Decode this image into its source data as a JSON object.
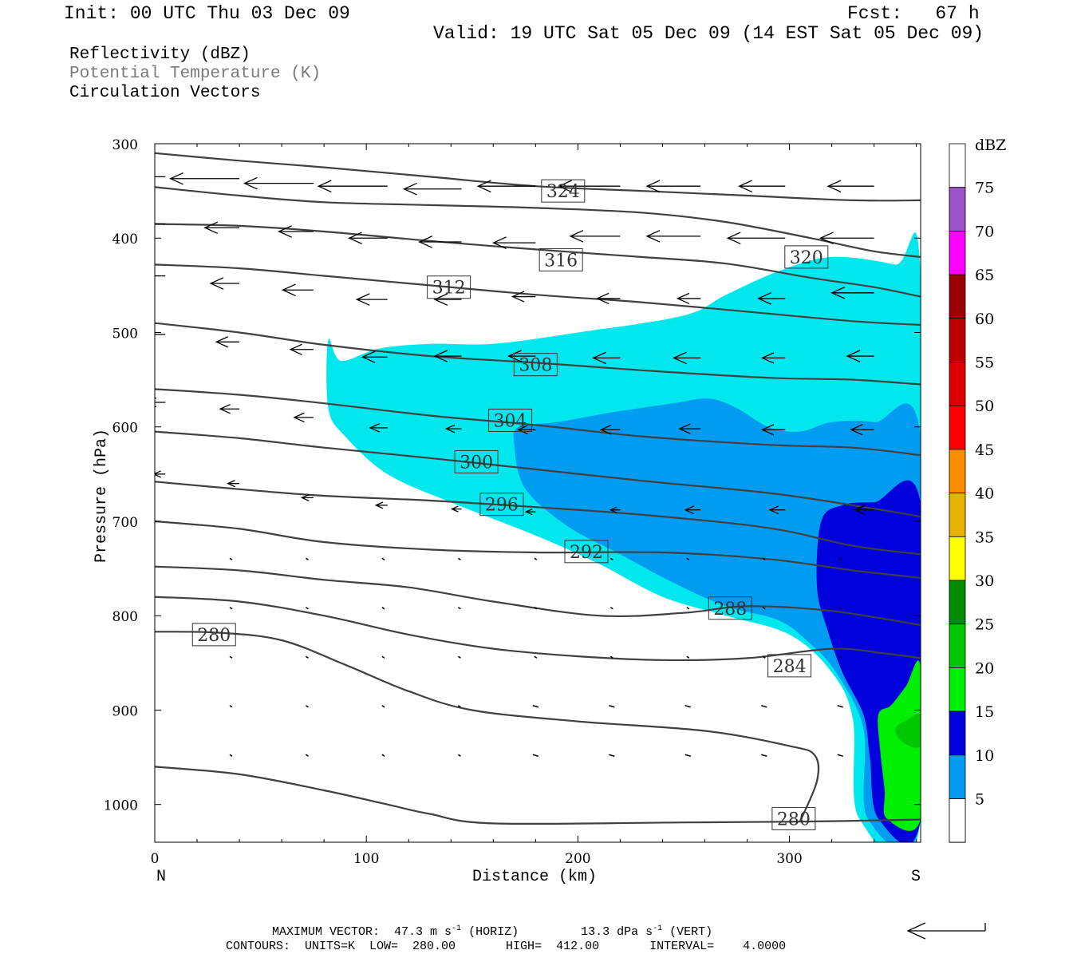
{
  "header": {
    "init": "Init: 00 UTC Thu 03 Dec 09",
    "fcst": "Fcst:   67 h",
    "valid": "Valid: 19 UTC Sat 05 Dec 09 (14 EST Sat 05 Dec 09)"
  },
  "fields": {
    "reflectivity": "Reflectivity (dBZ)",
    "theta": "Potential Temperature (K)",
    "vectors": "Circulation Vectors"
  },
  "footer": {
    "max_vector_prefix": "MAXIMUM VECTOR:  47.3 m s",
    "max_vector_horiz": "(HORIZ)",
    "vert_prefix": "13.3 dPa s",
    "vert_suffix": "(VERT)",
    "exponent": "-1",
    "contours": "CONTOURS:  UNITS=K  LOW=  280.00       HIGH=  412.00       INTERVAL=    4.0000"
  },
  "colors": {
    "c5": "#00e8ee",
    "c10": "#009cf2",
    "c15": "#0000dc",
    "c20": "#00ee00",
    "c25": "#00c800",
    "c30": "#008c00",
    "c35": "#ffff00",
    "c40": "#e6b400",
    "c45": "#ff8c00",
    "c50": "#ff0000",
    "c55": "#dc0000",
    "c60": "#be0000",
    "c65": "#9b0000",
    "c70": "#ff00ff",
    "c75": "#9a54c8",
    "contour": "#404040",
    "vector": "#000000"
  },
  "chart_data": {
    "type": "cross-section",
    "xlabel": "Distance (km)",
    "ylabel": "Pressure (hPa)",
    "xlim": [
      0,
      362
    ],
    "ylim": [
      300,
      1040
    ],
    "x_ticks": [
      0,
      100,
      200,
      300
    ],
    "y_ticks": [
      300,
      400,
      500,
      600,
      700,
      800,
      900,
      1000
    ],
    "left_end_label": "N",
    "right_end_label": "S",
    "colorbar": {
      "unit": "dBZ",
      "levels": [
        5,
        10,
        15,
        20,
        25,
        30,
        35,
        40,
        45,
        50,
        55,
        60,
        65,
        70,
        75
      ]
    },
    "reflectivity_regions": [
      {
        "dbz": 5,
        "points": [
          [
            82,
            508
          ],
          [
            88,
            530
          ],
          [
            106,
            517
          ],
          [
            130,
            512
          ],
          [
            160,
            512
          ],
          [
            200,
            500
          ],
          [
            250,
            482
          ],
          [
            270,
            460
          ],
          [
            295,
            435
          ],
          [
            320,
            420
          ],
          [
            350,
            428
          ],
          [
            362,
            440
          ],
          [
            362,
            1015
          ],
          [
            333,
            1015
          ],
          [
            330,
            910
          ],
          [
            320,
            860
          ],
          [
            300,
            820
          ],
          [
            270,
            800
          ],
          [
            240,
            780
          ],
          [
            210,
            745
          ],
          [
            180,
            715
          ],
          [
            140,
            680
          ],
          [
            110,
            650
          ],
          [
            90,
            610
          ],
          [
            82,
            580
          ]
        ]
      },
      {
        "dbz": 10,
        "points": [
          [
            172,
            600
          ],
          [
            190,
            595
          ],
          [
            215,
            585
          ],
          [
            245,
            575
          ],
          [
            262,
            570
          ],
          [
            275,
            580
          ],
          [
            290,
            600
          ],
          [
            305,
            605
          ],
          [
            320,
            595
          ],
          [
            340,
            595
          ],
          [
            362,
            610
          ],
          [
            362,
            1015
          ],
          [
            337,
            1015
          ],
          [
            335,
            920
          ],
          [
            322,
            860
          ],
          [
            310,
            830
          ],
          [
            295,
            805
          ],
          [
            270,
            790
          ],
          [
            245,
            765
          ],
          [
            220,
            735
          ],
          [
            195,
            705
          ],
          [
            175,
            665
          ],
          [
            170,
            620
          ]
        ]
      },
      {
        "dbz": 15,
        "points": [
          [
            315,
            700
          ],
          [
            325,
            683
          ],
          [
            340,
            680
          ],
          [
            362,
            682
          ],
          [
            362,
            1015
          ],
          [
            342,
            1015
          ],
          [
            338,
            950
          ],
          [
            335,
            905
          ],
          [
            325,
            860
          ],
          [
            318,
            815
          ],
          [
            313,
            770
          ]
        ]
      },
      {
        "dbz": 20,
        "points": [
          [
            342,
            905
          ],
          [
            348,
            895
          ],
          [
            355,
            875
          ],
          [
            362,
            855
          ],
          [
            362,
            1015
          ],
          [
            346,
            1015
          ],
          [
            345,
            985
          ],
          [
            343,
            945
          ]
        ]
      },
      {
        "dbz": 25,
        "points": [
          [
            350,
            920
          ],
          [
            356,
            910
          ],
          [
            362,
            905
          ],
          [
            362,
            938
          ],
          [
            354,
            935
          ]
        ]
      }
    ],
    "theta_contours": [
      {
        "label": "280",
        "label_at": [
          28,
          820
        ],
        "points": [
          [
            0,
            817
          ],
          [
            30,
            818
          ],
          [
            60,
            826
          ],
          [
            90,
            852
          ],
          [
            120,
            880
          ],
          [
            150,
            900
          ],
          [
            200,
            912
          ],
          [
            260,
            922
          ],
          [
            300,
            938
          ],
          [
            312,
            948
          ],
          [
            313,
            975
          ],
          [
            305,
            1018
          ]
        ]
      },
      {
        "label": "280",
        "label_at": [
          302,
          1015
        ],
        "points": [
          [
            0,
            960
          ],
          [
            40,
            968
          ],
          [
            80,
            985
          ],
          [
            110,
            1000
          ],
          [
            130,
            1010
          ],
          [
            160,
            1020
          ],
          [
            250,
            1019
          ],
          [
            310,
            1018
          ],
          [
            362,
            1016
          ]
        ]
      },
      {
        "label": "284",
        "label_at": [
          300,
          853
        ],
        "points": [
          [
            0,
            780
          ],
          [
            40,
            785
          ],
          [
            80,
            800
          ],
          [
            120,
            820
          ],
          [
            160,
            835
          ],
          [
            200,
            843
          ],
          [
            240,
            847
          ],
          [
            280,
            845
          ],
          [
            320,
            835
          ],
          [
            345,
            840
          ],
          [
            362,
            845
          ]
        ]
      },
      {
        "label": "288",
        "label_at": [
          272,
          792
        ],
        "points": [
          [
            0,
            748
          ],
          [
            40,
            752
          ],
          [
            80,
            762
          ],
          [
            120,
            770
          ],
          [
            160,
            785
          ],
          [
            210,
            800
          ],
          [
            250,
            797
          ],
          [
            280,
            790
          ],
          [
            320,
            795
          ],
          [
            362,
            810
          ]
        ]
      },
      {
        "label": "292",
        "label_at": [
          204,
          732
        ],
        "points": [
          [
            0,
            700
          ],
          [
            40,
            708
          ],
          [
            80,
            722
          ],
          [
            130,
            730
          ],
          [
            180,
            733
          ],
          [
            240,
            733
          ],
          [
            290,
            740
          ],
          [
            330,
            752
          ],
          [
            362,
            760
          ]
        ]
      },
      {
        "label": "296",
        "label_at": [
          164,
          682
        ],
        "points": [
          [
            0,
            658
          ],
          [
            40,
            666
          ],
          [
            80,
            673
          ],
          [
            130,
            678
          ],
          [
            180,
            685
          ],
          [
            230,
            693
          ],
          [
            290,
            707
          ],
          [
            330,
            726
          ],
          [
            362,
            735
          ]
        ]
      },
      {
        "label": "300",
        "label_at": [
          152,
          637
        ],
        "points": [
          [
            0,
            605
          ],
          [
            40,
            612
          ],
          [
            80,
            622
          ],
          [
            130,
            633
          ],
          [
            180,
            645
          ],
          [
            230,
            657
          ],
          [
            290,
            670
          ],
          [
            330,
            683
          ],
          [
            362,
            695
          ]
        ]
      },
      {
        "label": "304",
        "label_at": [
          168,
          593
        ],
        "points": [
          [
            0,
            560
          ],
          [
            40,
            566
          ],
          [
            80,
            575
          ],
          [
            130,
            588
          ],
          [
            180,
            598
          ],
          [
            230,
            610
          ],
          [
            290,
            619
          ],
          [
            330,
            622
          ],
          [
            362,
            630
          ]
        ]
      },
      {
        "label": "308",
        "label_at": [
          180,
          534
        ],
        "points": [
          [
            0,
            490
          ],
          [
            40,
            500
          ],
          [
            80,
            513
          ],
          [
            130,
            525
          ],
          [
            180,
            532
          ],
          [
            230,
            540
          ],
          [
            290,
            548
          ],
          [
            330,
            550
          ],
          [
            362,
            555
          ]
        ]
      },
      {
        "label": "312",
        "label_at": [
          139,
          452
        ],
        "points": [
          [
            0,
            428
          ],
          [
            40,
            432
          ],
          [
            80,
            440
          ],
          [
            130,
            450
          ],
          [
            180,
            460
          ],
          [
            230,
            468
          ],
          [
            290,
            480
          ],
          [
            330,
            488
          ],
          [
            362,
            492
          ]
        ]
      },
      {
        "label": "316",
        "label_at": [
          192,
          423
        ],
        "points": [
          [
            0,
            385
          ],
          [
            40,
            387
          ],
          [
            80,
            393
          ],
          [
            130,
            403
          ],
          [
            180,
            412
          ],
          [
            230,
            420
          ],
          [
            270,
            427
          ],
          [
            310,
            442
          ],
          [
            340,
            452
          ],
          [
            362,
            462
          ]
        ]
      },
      {
        "label": "320",
        "label_at": [
          308,
          420
        ],
        "points": [
          [
            0,
            346
          ],
          [
            40,
            355
          ],
          [
            80,
            362
          ],
          [
            130,
            365
          ],
          [
            180,
            368
          ],
          [
            230,
            373
          ],
          [
            270,
            383
          ],
          [
            310,
            400
          ],
          [
            340,
            414
          ],
          [
            362,
            420
          ]
        ]
      },
      {
        "label": "324",
        "label_at": [
          193,
          350
        ],
        "points": [
          [
            0,
            310
          ],
          [
            40,
            318
          ],
          [
            80,
            325
          ],
          [
            130,
            335
          ],
          [
            180,
            345
          ],
          [
            230,
            350
          ],
          [
            280,
            355
          ],
          [
            330,
            360
          ],
          [
            362,
            360
          ]
        ]
      }
    ],
    "vectors": [
      [
        5,
        335,
        -32
      ],
      [
        40,
        337,
        -36
      ],
      [
        75,
        342,
        -36
      ],
      [
        110,
        345,
        -36
      ],
      [
        145,
        348,
        -30
      ],
      [
        180,
        345,
        -30
      ],
      [
        220,
        345,
        -32
      ],
      [
        258,
        345,
        -28
      ],
      [
        298,
        345,
        -24
      ],
      [
        340,
        345,
        -24
      ],
      [
        5,
        385,
        -20
      ],
      [
        40,
        389,
        -18
      ],
      [
        75,
        393,
        -18
      ],
      [
        110,
        400,
        -20
      ],
      [
        145,
        404,
        -22
      ],
      [
        180,
        405,
        -22
      ],
      [
        220,
        398,
        -26
      ],
      [
        258,
        398,
        -28
      ],
      [
        298,
        400,
        -30
      ],
      [
        340,
        400,
        -28
      ],
      [
        5,
        440,
        -15
      ],
      [
        40,
        448,
        -15
      ],
      [
        75,
        455,
        -16
      ],
      [
        110,
        465,
        -16
      ],
      [
        145,
        465,
        -14
      ],
      [
        180,
        462,
        -12
      ],
      [
        220,
        464,
        -12
      ],
      [
        258,
        464,
        -12
      ],
      [
        298,
        464,
        -14
      ],
      [
        340,
        458,
        -22
      ],
      [
        5,
        502,
        -12
      ],
      [
        40,
        510,
        -12
      ],
      [
        75,
        518,
        -12
      ],
      [
        110,
        526,
        -13
      ],
      [
        145,
        525,
        -14
      ],
      [
        180,
        525,
        -14
      ],
      [
        220,
        527,
        -14
      ],
      [
        258,
        527,
        -14
      ],
      [
        298,
        527,
        -12
      ],
      [
        340,
        525,
        -14
      ],
      [
        5,
        574,
        -10
      ],
      [
        40,
        581,
        -10
      ],
      [
        75,
        590,
        -10
      ],
      [
        110,
        601,
        -9
      ],
      [
        145,
        602,
        -8
      ],
      [
        180,
        603,
        -9
      ],
      [
        220,
        603,
        -10
      ],
      [
        258,
        602,
        -11
      ],
      [
        298,
        603,
        -12
      ],
      [
        340,
        603,
        -12
      ],
      [
        5,
        650,
        -6
      ],
      [
        40,
        660,
        -6
      ],
      [
        75,
        675,
        -6
      ],
      [
        110,
        683,
        -6
      ],
      [
        145,
        687,
        -5
      ],
      [
        180,
        690,
        -5
      ],
      [
        220,
        688,
        -5
      ],
      [
        258,
        688,
        -8
      ],
      [
        298,
        688,
        -8
      ],
      [
        340,
        688,
        -10
      ]
    ]
  }
}
